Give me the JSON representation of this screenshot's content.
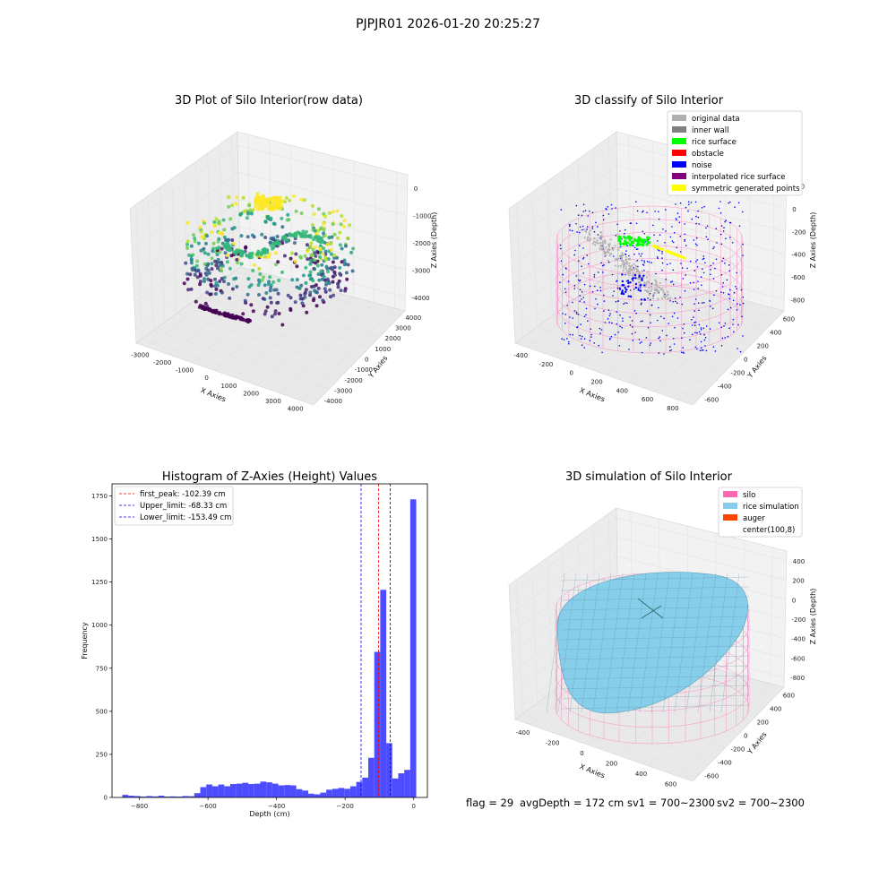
{
  "suptitle": "PJPJR01 2026-01-20 20:25:27",
  "footer": {
    "flag": "flag = 29",
    "avg_depth": "avgDepth = 172 cm",
    "sv1": "sv1 = 700~2300",
    "sv2": "sv2 = 700~2300"
  },
  "colors": {
    "hist_bar": "#4d4dff",
    "first_peak": "#ff0000",
    "limits": "#0000ff",
    "silo": "#ff69b4",
    "rice_simulation": "#87ceeb",
    "auger": "#ff4500",
    "original_data": "#b0b0b0",
    "inner_wall": "#808080",
    "rice_surface": "#00ff00",
    "obstacle": "#ff0000",
    "noise": "#0000ff",
    "interpolated_rice_surface": "#800080",
    "symmetric_generated_points": "#ffff00"
  },
  "chart_data": [
    {
      "type": "scatter3d",
      "title": "3D Plot of Silo Interior(row data)",
      "xlabel": "X Axies",
      "ylabel": "Y Axies",
      "zlabel": "Z Axies (Depth)",
      "xticks": [
        "-3000",
        "-2000",
        "-1000",
        "0",
        "1000",
        "2000",
        "3000",
        "4000"
      ],
      "yticks": [
        "4000",
        "3000",
        "2000",
        "1000",
        "0",
        "-1000",
        "-2000",
        "-3000",
        "-4000"
      ],
      "zticks": [
        "0",
        "-1000",
        "-2000",
        "-3000",
        "-4000"
      ],
      "colormap": "viridis"
    },
    {
      "type": "scatter3d",
      "title": "3D classify of Silo Interior",
      "xlabel": "X Axies",
      "ylabel": "Y Axies",
      "zlabel": "Z Axies (Depth)",
      "xticks": [
        "-400",
        "-200",
        "0",
        "200",
        "400",
        "600",
        "800"
      ],
      "yticks": [
        "600",
        "400",
        "200",
        "0",
        "-200",
        "-400",
        "-600"
      ],
      "zticks": [
        "200",
        "0",
        "-200",
        "-400",
        "-600",
        "-800"
      ],
      "legend": [
        {
          "label": "original data",
          "color": "#b0b0b0"
        },
        {
          "label": "inner wall",
          "color": "#808080"
        },
        {
          "label": "rice surface",
          "color": "#00ff00"
        },
        {
          "label": "obstacle",
          "color": "#ff0000"
        },
        {
          "label": "noise",
          "color": "#0000ff"
        },
        {
          "label": "interpolated rice surface",
          "color": "#800080"
        },
        {
          "label": "symmetric generated points",
          "color": "#ffff00"
        }
      ],
      "legend_position": "top-right"
    },
    {
      "type": "bar",
      "title": "Histogram of Z-Axies (Height) Values",
      "xlabel": "Depth (cm)",
      "ylabel": "Frequency",
      "xlim": [
        -880,
        40
      ],
      "ylim": [
        0,
        1820
      ],
      "xticks": [
        -800,
        -600,
        -400,
        -200,
        0
      ],
      "yticks": [
        0,
        250,
        500,
        750,
        1000,
        1250,
        1500,
        1750
      ],
      "bin_width": 17.5,
      "bin_start": -850,
      "values": [
        15,
        10,
        8,
        5,
        8,
        6,
        10,
        5,
        6,
        5,
        8,
        7,
        25,
        60,
        75,
        65,
        75,
        65,
        78,
        80,
        85,
        78,
        80,
        92,
        88,
        80,
        70,
        72,
        70,
        48,
        40,
        22,
        18,
        28,
        45,
        50,
        55,
        50,
        65,
        90,
        115,
        230,
        845,
        1205,
        315,
        110,
        140,
        160,
        1730
      ],
      "lines": [
        {
          "label": "first_peak: -102.39 cm",
          "x": -102.39,
          "color": "#ff0000"
        },
        {
          "label": "Upper_limit: -68.33 cm",
          "x": -68.33,
          "color": "#0000ff"
        },
        {
          "label": "Lower_limit: -153.49 cm",
          "x": -153.49,
          "color": "#0000ff"
        }
      ],
      "legend_position": "top-left"
    },
    {
      "type": "surface3d",
      "title": "3D simulation of Silo Interior",
      "xlabel": "X Axies",
      "ylabel": "Y Axies",
      "zlabel": "Z Axies (Depth)",
      "xticks": [
        "-400",
        "-200",
        "0",
        "200",
        "400",
        "600"
      ],
      "yticks": [
        "600",
        "400",
        "200",
        "0",
        "-200",
        "-400",
        "-600"
      ],
      "zticks": [
        "400",
        "200",
        "0",
        "-200",
        "-400",
        "-600",
        "-800"
      ],
      "legend": [
        {
          "label": "silo",
          "color": "#ff69b4"
        },
        {
          "label": "rice simulation",
          "color": "#87ceeb"
        },
        {
          "label": "auger",
          "color": "#ff4500"
        },
        {
          "label": "center(100,8)",
          "color": ""
        }
      ],
      "legend_position": "top-right"
    }
  ]
}
